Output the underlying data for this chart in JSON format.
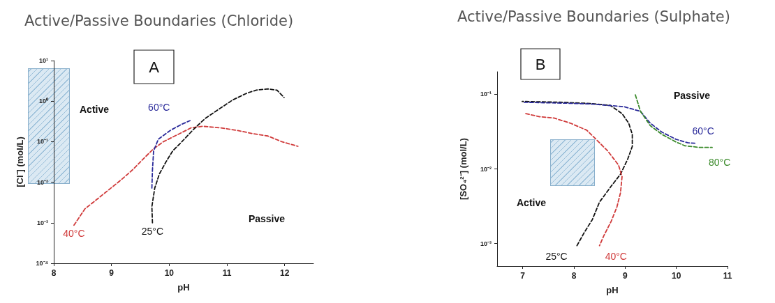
{
  "chart_data": [
    {
      "type": "line",
      "title": "Active/Passive Boundaries (Chloride)",
      "subtitle": "A",
      "xlabel": "pH",
      "ylabel": "[Cl⁻] (mol/L)",
      "log": "y",
      "legend": false,
      "grid": false,
      "marker": "none",
      "line_style": "dashed",
      "xlim": [
        8,
        12.5
      ],
      "xticks": [
        8,
        9,
        10,
        11,
        12
      ],
      "ylim": [
        0.0001,
        10
      ],
      "yticks": [
        {
          "value": 0.0001,
          "label": "10⁻⁴"
        },
        {
          "value": 0.001,
          "label": "10⁻³"
        },
        {
          "value": 0.01,
          "label": "10⁻²"
        },
        {
          "value": 0.1,
          "label": "10⁻¹"
        },
        {
          "value": 1,
          "label": "10⁰"
        },
        {
          "value": 10,
          "label": "10¹"
        }
      ],
      "annotations": [
        "Active",
        "Passive"
      ],
      "series": [
        {
          "name": "40°C",
          "color": "#d03a3a",
          "x": [
            8.35,
            8.54,
            8.77,
            8.97,
            9.17,
            9.37,
            9.57,
            9.73,
            9.9,
            10.14,
            10.38,
            10.58,
            10.94,
            11.19,
            11.43,
            11.71,
            11.95,
            12.23
          ],
          "values": [
            0.00087,
            0.0022,
            0.004,
            0.0068,
            0.0115,
            0.0205,
            0.04,
            0.067,
            0.1,
            0.148,
            0.22,
            0.24,
            0.215,
            0.188,
            0.16,
            0.138,
            0.1,
            0.077
          ]
        },
        {
          "name": "60°C",
          "color": "#2a2a9a",
          "x": [
            9.7,
            9.71,
            9.73,
            9.81,
            10.02,
            10.22,
            10.36
          ],
          "values": [
            0.0072,
            0.02,
            0.059,
            0.114,
            0.19,
            0.27,
            0.33
          ]
        },
        {
          "name": "25°C",
          "color": "#111111",
          "x": [
            9.71,
            9.7,
            9.75,
            9.83,
            9.94,
            10.06,
            10.22,
            10.42,
            10.62,
            10.86,
            11.1,
            11.35,
            11.51,
            11.71,
            11.87,
            11.99
          ],
          "values": [
            0.001,
            0.0025,
            0.0072,
            0.016,
            0.031,
            0.059,
            0.1,
            0.2,
            0.37,
            0.63,
            1.07,
            1.58,
            1.87,
            2.0,
            1.86,
            1.23
          ]
        }
      ]
    },
    {
      "type": "line",
      "title": "Active/Passive Boundaries (Sulphate)",
      "subtitle": "B",
      "xlabel": "pH",
      "ylabel": "[SO₄²⁻] (mol/L)",
      "log": "y",
      "legend": false,
      "grid": false,
      "marker": "none",
      "line_style": "dashed",
      "xlim": [
        6.5,
        11
      ],
      "xticks": [
        7,
        8,
        9,
        10,
        11
      ],
      "ylim": [
        0.0005,
        0.2
      ],
      "yticks": [
        {
          "value": 0.001,
          "label": "10⁻³"
        },
        {
          "value": 0.01,
          "label": "10⁻²"
        },
        {
          "value": 0.1,
          "label": "10⁻¹"
        }
      ],
      "annotations": [
        "Passive",
        "Active"
      ],
      "series": [
        {
          "name": "25°C",
          "color": "#111111",
          "x": [
            8.06,
            8.2,
            8.36,
            8.5,
            8.73,
            8.91,
            9.05,
            9.14,
            9.14,
            9.07,
            8.94,
            8.71,
            8.34,
            7.79,
            6.99
          ],
          "values": [
            0.00094,
            0.0014,
            0.0021,
            0.0036,
            0.0059,
            0.0085,
            0.0135,
            0.02,
            0.029,
            0.041,
            0.055,
            0.071,
            0.075,
            0.078,
            0.08
          ]
        },
        {
          "name": "40°C",
          "color": "#d03a3a",
          "x": [
            7.06,
            7.33,
            7.61,
            7.93,
            8.25,
            8.43,
            8.66,
            8.87,
            8.94,
            8.91,
            8.84,
            8.73,
            8.59,
            8.5
          ],
          "values": [
            0.055,
            0.05,
            0.048,
            0.041,
            0.033,
            0.025,
            0.0174,
            0.0113,
            0.0079,
            0.0048,
            0.0031,
            0.002,
            0.0013,
            0.00094
          ]
        },
        {
          "name": "60°C",
          "color": "#2a2a9a",
          "x": [
            7.03,
            7.79,
            8.34,
            8.98,
            9.3,
            9.49,
            9.72,
            9.99,
            10.22,
            10.38
          ],
          "values": [
            0.078,
            0.076,
            0.074,
            0.068,
            0.059,
            0.041,
            0.031,
            0.025,
            0.0224,
            0.022
          ]
        },
        {
          "name": "80°C",
          "color": "#3a8a2a",
          "x": [
            9.2,
            9.3,
            9.49,
            9.72,
            9.99,
            10.17,
            10.45,
            10.7
          ],
          "values": [
            0.098,
            0.059,
            0.038,
            0.029,
            0.023,
            0.0204,
            0.0194,
            0.0194
          ]
        }
      ]
    }
  ]
}
